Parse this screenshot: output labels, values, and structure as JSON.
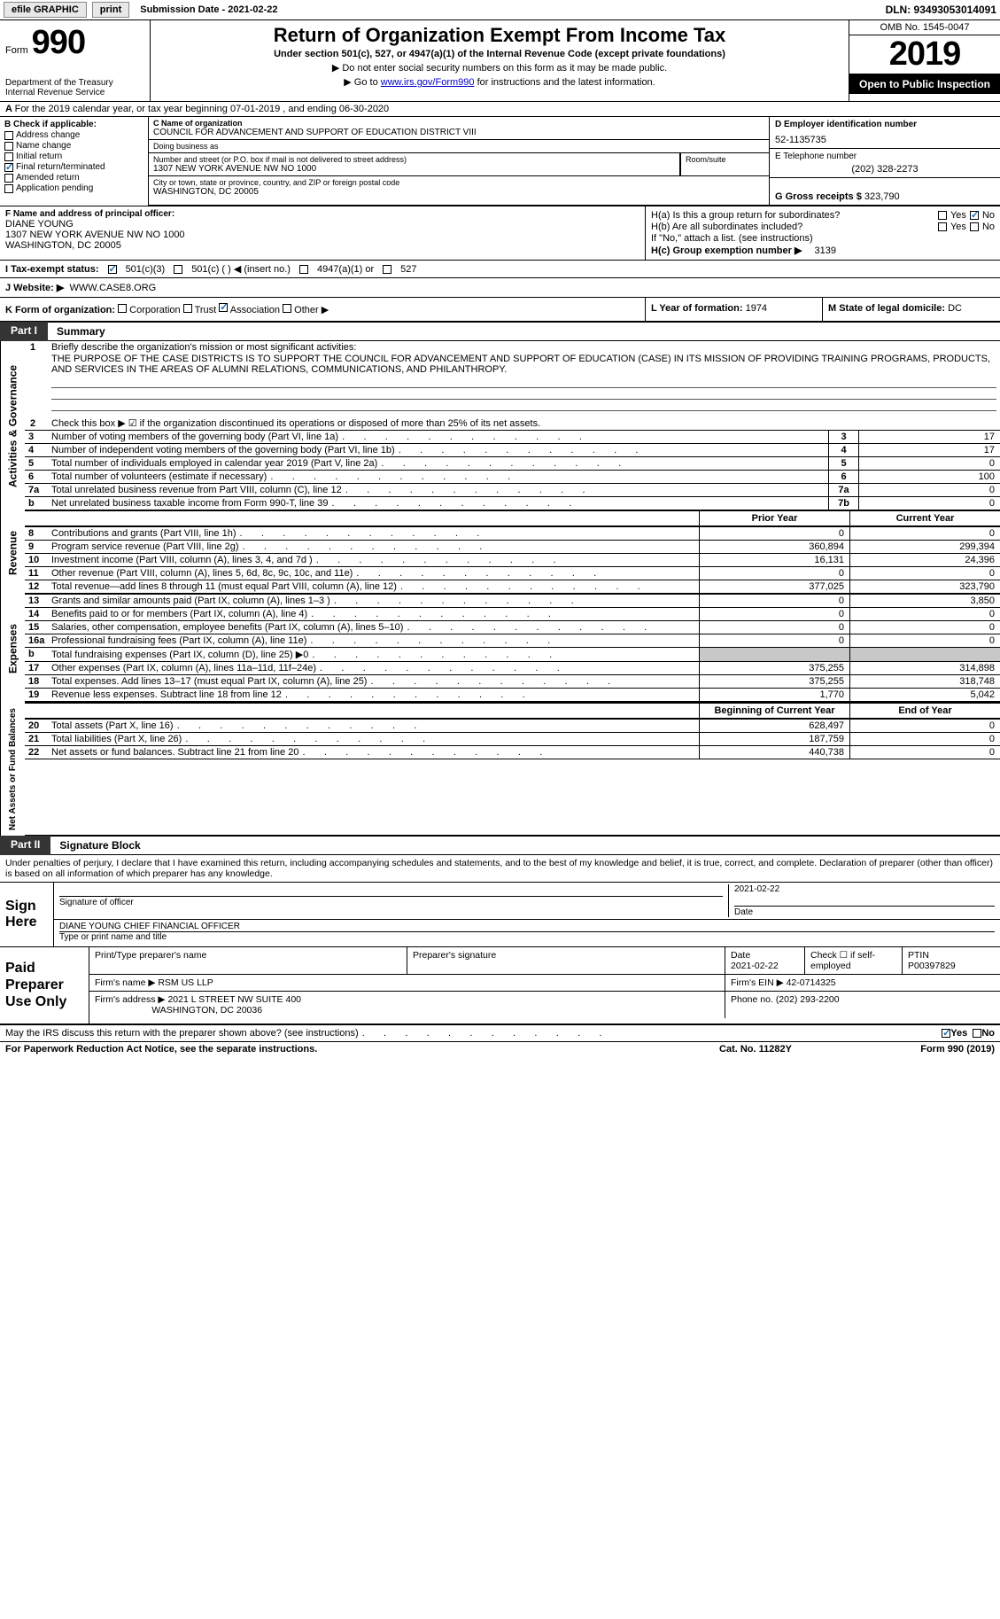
{
  "topbar": {
    "efile": "efile GRAPHIC",
    "print": "print",
    "submission": "Submission Date - 2021-02-22",
    "dln": "DLN: 93493053014091"
  },
  "header": {
    "form_word": "Form",
    "form_num": "990",
    "dept1": "Department of the Treasury",
    "dept2": "Internal Revenue Service",
    "title": "Return of Organization Exempt From Income Tax",
    "sub": "Under section 501(c), 527, or 4947(a)(1) of the Internal Revenue Code (except private foundations)",
    "instr1": "▶ Do not enter social security numbers on this form as it may be made public.",
    "instr2_pre": "▶ Go to ",
    "instr2_link": "www.irs.gov/Form990",
    "instr2_post": " for instructions and the latest information.",
    "omb": "OMB No. 1545-0047",
    "year": "2019",
    "inspect": "Open to Public Inspection"
  },
  "line_a": "For the 2019 calendar year, or tax year beginning 07-01-2019   , and ending 06-30-2020",
  "col_b": {
    "hdr": "B Check if applicable:",
    "addr": "Address change",
    "name": "Name change",
    "init": "Initial return",
    "final": "Final return/terminated",
    "amend": "Amended return",
    "app": "Application pending"
  },
  "org": {
    "c_lab": "C Name of organization",
    "name": "COUNCIL FOR ADVANCEMENT AND SUPPORT OF EDUCATION DISTRICT VIII",
    "dba_lab": "Doing business as",
    "dba": "",
    "street_lab": "Number and street (or P.O. box if mail is not delivered to street address)",
    "street": "1307 NEW YORK AVENUE NW NO 1000",
    "room_lab": "Room/suite",
    "city_lab": "City or town, state or province, country, and ZIP or foreign postal code",
    "city": "WASHINGTON, DC  20005"
  },
  "col_de": {
    "d_lab": "D Employer identification number",
    "ein": "52-1135735",
    "e_lab": "E Telephone number",
    "phone": "(202) 328-2273",
    "g_lab": "G Gross receipts $",
    "g_val": "323,790"
  },
  "f": {
    "lab": "F Name and address of principal officer:",
    "name": "DIANE YOUNG",
    "addr1": "1307 NEW YORK AVENUE NW NO 1000",
    "addr2": "WASHINGTON, DC  20005"
  },
  "h": {
    "ha": "H(a)  Is this a group return for subordinates?",
    "hb": "H(b)  Are all subordinates included?",
    "hnote": "If \"No,\" attach a list. (see instructions)",
    "hc_lab": "H(c)  Group exemption number ▶",
    "hc_val": "3139",
    "yes": "Yes",
    "no": "No"
  },
  "i": {
    "lab": "I   Tax-exempt status:",
    "o1": "501(c)(3)",
    "o2": "501(c) (  ) ◀ (insert no.)",
    "o3": "4947(a)(1) or",
    "o4": "527"
  },
  "j": {
    "lab": "J   Website: ▶",
    "val": "WWW.CASE8.ORG"
  },
  "k": {
    "lab": "K Form of organization:",
    "corp": "Corporation",
    "trust": "Trust",
    "assoc": "Association",
    "other": "Other ▶"
  },
  "l": {
    "lab": "L Year of formation:",
    "val": "1974"
  },
  "m": {
    "lab": "M State of legal domicile:",
    "val": "DC"
  },
  "part1": {
    "tab": "Part I",
    "title": "Summary"
  },
  "mission": {
    "num": "1",
    "lab": "Briefly describe the organization's mission or most significant activities:",
    "txt": "THE PURPOSE OF THE CASE DISTRICTS IS TO SUPPORT THE COUNCIL FOR ADVANCEMENT AND SUPPORT OF EDUCATION (CASE) IN ITS MISSION OF PROVIDING TRAINING PROGRAMS, PRODUCTS, AND SERVICES IN THE AREAS OF ALUMNI RELATIONS, COMMUNICATIONS, AND PHILANTHROPY."
  },
  "gov_lines": {
    "l2": {
      "num": "2",
      "txt": "Check this box ▶ ☑ if the organization discontinued its operations or disposed of more than 25% of its net assets."
    },
    "l3": {
      "num": "3",
      "txt": "Number of voting members of the governing body (Part VI, line 1a)",
      "id": "3",
      "v": "17"
    },
    "l4": {
      "num": "4",
      "txt": "Number of independent voting members of the governing body (Part VI, line 1b)",
      "id": "4",
      "v": "17"
    },
    "l5": {
      "num": "5",
      "txt": "Total number of individuals employed in calendar year 2019 (Part V, line 2a)",
      "id": "5",
      "v": "0"
    },
    "l6": {
      "num": "6",
      "txt": "Total number of volunteers (estimate if necessary)",
      "id": "6",
      "v": "100"
    },
    "l7a": {
      "num": "7a",
      "txt": "Total unrelated business revenue from Part VIII, column (C), line 12",
      "id": "7a",
      "v": "0"
    },
    "l7b": {
      "num": "b",
      "txt": "Net unrelated business taxable income from Form 990-T, line 39",
      "id": "7b",
      "v": "0"
    }
  },
  "cols": {
    "prior": "Prior Year",
    "current": "Current Year",
    "begin": "Beginning of Current Year",
    "end": "End of Year"
  },
  "revenue": [
    {
      "num": "8",
      "txt": "Contributions and grants (Part VIII, line 1h)",
      "p": "0",
      "c": "0"
    },
    {
      "num": "9",
      "txt": "Program service revenue (Part VIII, line 2g)",
      "p": "360,894",
      "c": "299,394"
    },
    {
      "num": "10",
      "txt": "Investment income (Part VIII, column (A), lines 3, 4, and 7d )",
      "p": "16,131",
      "c": "24,396"
    },
    {
      "num": "11",
      "txt": "Other revenue (Part VIII, column (A), lines 5, 6d, 8c, 9c, 10c, and 11e)",
      "p": "0",
      "c": "0"
    },
    {
      "num": "12",
      "txt": "Total revenue—add lines 8 through 11 (must equal Part VIII, column (A), line 12)",
      "p": "377,025",
      "c": "323,790"
    }
  ],
  "expenses": [
    {
      "num": "13",
      "txt": "Grants and similar amounts paid (Part IX, column (A), lines 1–3 )",
      "p": "0",
      "c": "3,850"
    },
    {
      "num": "14",
      "txt": "Benefits paid to or for members (Part IX, column (A), line 4)",
      "p": "0",
      "c": "0"
    },
    {
      "num": "15",
      "txt": "Salaries, other compensation, employee benefits (Part IX, column (A), lines 5–10)",
      "p": "0",
      "c": "0"
    },
    {
      "num": "16a",
      "txt": "Professional fundraising fees (Part IX, column (A), line 11e)",
      "p": "0",
      "c": "0"
    },
    {
      "num": "b",
      "txt": "Total fundraising expenses (Part IX, column (D), line 25) ▶0",
      "p": "",
      "c": "",
      "shade": true
    },
    {
      "num": "17",
      "txt": "Other expenses (Part IX, column (A), lines 11a–11d, 11f–24e)",
      "p": "375,255",
      "c": "314,898"
    },
    {
      "num": "18",
      "txt": "Total expenses. Add lines 13–17 (must equal Part IX, column (A), line 25)",
      "p": "375,255",
      "c": "318,748"
    },
    {
      "num": "19",
      "txt": "Revenue less expenses. Subtract line 18 from line 12",
      "p": "1,770",
      "c": "5,042"
    }
  ],
  "net": [
    {
      "num": "20",
      "txt": "Total assets (Part X, line 16)",
      "p": "628,497",
      "c": "0"
    },
    {
      "num": "21",
      "txt": "Total liabilities (Part X, line 26)",
      "p": "187,759",
      "c": "0"
    },
    {
      "num": "22",
      "txt": "Net assets or fund balances. Subtract line 21 from line 20",
      "p": "440,738",
      "c": "0"
    }
  ],
  "vtabs": {
    "gov": "Activities & Governance",
    "rev": "Revenue",
    "exp": "Expenses",
    "net": "Net Assets or Fund Balances"
  },
  "part2": {
    "tab": "Part II",
    "title": "Signature Block"
  },
  "perjury": "Under penalties of perjury, I declare that I have examined this return, including accompanying schedules and statements, and to the best of my knowledge and belief, it is true, correct, and complete. Declaration of preparer (other than officer) is based on all information of which preparer has any knowledge.",
  "sign": {
    "lab": "Sign Here",
    "sig_lab": "Signature of officer",
    "date": "2021-02-22",
    "date_lab": "Date",
    "name": "DIANE YOUNG CHIEF FINANCIAL OFFICER",
    "name_lab": "Type or print name and title"
  },
  "prep": {
    "lab": "Paid Preparer Use Only",
    "p_name_lab": "Print/Type preparer's name",
    "p_sig_lab": "Preparer's signature",
    "p_date_lab": "Date",
    "p_date": "2021-02-22",
    "p_check": "Check ☐ if self-employed",
    "ptin_lab": "PTIN",
    "ptin": "P00397829",
    "firm_lab": "Firm's name  ▶",
    "firm": "RSM US LLP",
    "fein_lab": "Firm's EIN ▶",
    "fein": "42-0714325",
    "faddr_lab": "Firm's address ▶",
    "faddr1": "2021 L STREET NW SUITE 400",
    "faddr2": "WASHINGTON, DC  20036",
    "fphone_lab": "Phone no.",
    "fphone": "(202) 293-2200"
  },
  "discuss": {
    "txt": "May the IRS discuss this return with the preparer shown above? (see instructions)",
    "yes": "Yes",
    "no": "No"
  },
  "footer": {
    "left": "For Paperwork Reduction Act Notice, see the separate instructions.",
    "mid": "Cat. No. 11282Y",
    "right": "Form 990 (2019)"
  }
}
